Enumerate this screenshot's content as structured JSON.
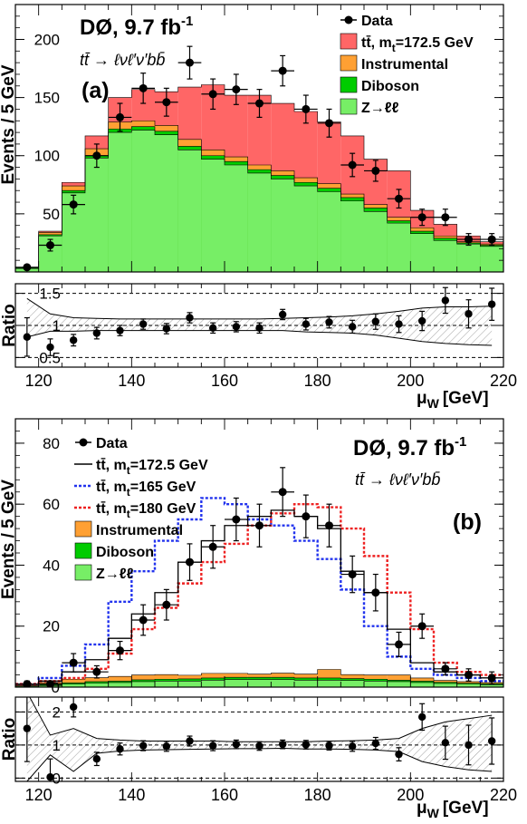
{
  "chart_data": [
    {
      "panel": "(a)",
      "type": "bar",
      "experiment": "DØ, 9.7 fb",
      "lumi_exp": "-1",
      "channel": "tt̄ → ℓνℓ′ν′bb̄",
      "xlabel": "μ",
      "xlabel_sub": "W",
      "xlabel_unit": "[GeV]",
      "ylabel": "Events / 5 GeV",
      "ratio_ylabel": "Ratio",
      "xlim": [
        115,
        220
      ],
      "ylim": [
        0,
        230
      ],
      "ratio_ylim": [
        0.35,
        1.65
      ],
      "xticks": [
        120,
        140,
        160,
        180,
        200,
        220
      ],
      "yticks": [
        50,
        100,
        150,
        200
      ],
      "ratio_yticks": [
        "0.5",
        "1",
        "1.5"
      ],
      "ratio_yvals": [
        0.5,
        1,
        1.5
      ],
      "bin_edges": [
        115,
        120,
        125,
        130,
        135,
        140,
        145,
        150,
        155,
        160,
        165,
        170,
        175,
        180,
        185,
        190,
        195,
        200,
        205,
        210,
        215,
        220
      ],
      "legend": [
        {
          "marker": "point",
          "label": "Data"
        },
        {
          "marker": "box",
          "color": "#ff6666",
          "label": "tt̄, m",
          "sub": "t",
          "suffix": "=172.5 GeV"
        },
        {
          "marker": "box",
          "color": "#ffa033",
          "label": "Instrumental"
        },
        {
          "marker": "box",
          "color": "#00cc00",
          "label": "Diboson"
        },
        {
          "marker": "box",
          "color": "#77ee66",
          "label": "Z→ℓℓ"
        }
      ],
      "colors": {
        "ttbar": "#ff6666",
        "instrumental": "#ffa033",
        "diboson": "#00cc00",
        "zll": "#77ee66"
      },
      "stack": {
        "zll": [
          3,
          31,
          68,
          98,
          120,
          122,
          118,
          105,
          97,
          92,
          85,
          80,
          74,
          69,
          61,
          52,
          42,
          33,
          27,
          24,
          22
        ],
        "diboson": [
          0.5,
          1,
          2,
          2,
          3,
          3,
          3,
          3,
          3,
          3,
          3,
          3,
          3,
          3,
          3,
          3,
          2,
          2,
          2,
          1,
          1
        ],
        "instrumental": [
          0.5,
          2,
          4,
          6,
          6,
          5,
          5,
          6,
          5,
          4,
          4,
          4,
          4,
          4,
          3,
          3,
          3,
          3,
          2,
          1,
          1
        ],
        "ttbar": [
          0,
          1,
          3,
          11,
          21,
          27,
          29,
          45,
          56,
          53,
          60,
          58,
          57,
          53,
          50,
          39,
          40,
          15,
          10,
          5,
          2
        ]
      },
      "data": {
        "x": [
          117.5,
          122.5,
          127.5,
          132.5,
          137.5,
          142.5,
          147.5,
          152.5,
          157.5,
          162.5,
          167.5,
          172.5,
          177.5,
          182.5,
          187.5,
          192.5,
          197.5,
          202.5,
          207.5,
          212.5,
          217.5
        ],
        "y": [
          4,
          23,
          58,
          100,
          133,
          158,
          146,
          180,
          153,
          157,
          145,
          173,
          140,
          128,
          92,
          87,
          63,
          47,
          47,
          28,
          28
        ],
        "err": [
          2,
          5,
          8,
          10,
          12,
          13,
          12,
          14,
          13,
          13,
          12,
          13,
          12,
          12,
          10,
          9,
          8,
          7,
          7,
          5,
          5
        ]
      },
      "ratio": {
        "x": [
          117.5,
          122.5,
          127.5,
          132.5,
          137.5,
          142.5,
          147.5,
          152.5,
          157.5,
          162.5,
          167.5,
          172.5,
          177.5,
          182.5,
          187.5,
          192.5,
          197.5,
          202.5,
          207.5,
          212.5,
          217.5
        ],
        "y": [
          0.82,
          0.66,
          0.77,
          0.88,
          0.92,
          1.02,
          0.95,
          1.12,
          0.96,
          0.98,
          0.96,
          1.17,
          1.02,
          1.05,
          0.98,
          1.06,
          1.02,
          1.07,
          1.39,
          1.18,
          1.33
        ],
        "err": [
          0.3,
          0.13,
          0.09,
          0.09,
          0.08,
          0.08,
          0.08,
          0.08,
          0.08,
          0.08,
          0.08,
          0.08,
          0.09,
          0.09,
          0.1,
          0.12,
          0.13,
          0.15,
          0.2,
          0.22,
          0.25
        ],
        "band_upper": [
          1.42,
          1.18,
          1.12,
          1.11,
          1.1,
          1.1,
          1.1,
          1.1,
          1.1,
          1.1,
          1.1,
          1.11,
          1.12,
          1.13,
          1.15,
          1.18,
          1.22,
          1.27,
          1.29,
          1.29,
          1.3
        ],
        "band_lower": [
          0.82,
          0.91,
          0.91,
          0.92,
          0.92,
          0.92,
          0.92,
          0.92,
          0.92,
          0.92,
          0.92,
          0.92,
          0.9,
          0.89,
          0.88,
          0.85,
          0.8,
          0.75,
          0.72,
          0.7,
          0.69
        ]
      }
    },
    {
      "panel": "(b)",
      "type": "bar",
      "experiment": "DØ, 9.7 fb",
      "lumi_exp": "-1",
      "channel": "tt̄ → ℓνℓ′ν′bb̄",
      "xlabel": "μ",
      "xlabel_sub": "W",
      "xlabel_unit": "[GeV]",
      "ylabel": "Events / 5 GeV",
      "ratio_ylabel": "Ratio",
      "xlim": [
        115,
        220
      ],
      "ylim": [
        0,
        88
      ],
      "ratio_ylim": [
        -0.1,
        2.45
      ],
      "xticks": [
        120,
        140,
        160,
        180,
        200,
        220
      ],
      "yticks": [
        0,
        20,
        40,
        60,
        80
      ],
      "ratio_yticks": [
        "0",
        "1",
        "2"
      ],
      "ratio_yvals": [
        0,
        1,
        2
      ],
      "bin_edges": [
        115,
        120,
        125,
        130,
        135,
        140,
        145,
        150,
        155,
        160,
        165,
        170,
        175,
        180,
        185,
        190,
        195,
        200,
        205,
        210,
        215,
        220
      ],
      "legend": [
        {
          "marker": "point",
          "label": "Data"
        },
        {
          "marker": "line",
          "color": "#000000",
          "label": "tt̄, m",
          "sub": "t",
          "suffix": "=172.5 GeV"
        },
        {
          "marker": "dashline",
          "color": "#2233ee",
          "label": "tt̄, m",
          "sub": "t",
          "suffix": "=165 GeV"
        },
        {
          "marker": "dashline",
          "color": "#ee2222",
          "label": "tt̄, m",
          "sub": "t",
          "suffix": "=180 GeV"
        },
        {
          "marker": "box",
          "color": "#ffa033",
          "label": "Instrumental"
        },
        {
          "marker": "box",
          "color": "#00cc00",
          "label": "Diboson"
        },
        {
          "marker": "box",
          "color": "#77ee66",
          "label": "Z→ℓℓ"
        }
      ],
      "colors": {
        "instrumental": "#ffa033",
        "diboson": "#00cc00",
        "zll": "#77ee66",
        "nominal": "#000000",
        "mt165": "#2233ee",
        "mt180": "#ee2222"
      },
      "stack": {
        "zll": [
          0.3,
          0.5,
          1,
          1.3,
          1.5,
          1.8,
          2,
          2,
          2.3,
          2.5,
          2.5,
          2.5,
          2.3,
          2.3,
          2.2,
          2,
          1.8,
          1.5,
          1.2,
          1,
          0.8
        ],
        "diboson": [
          0.1,
          0.3,
          0.4,
          0.5,
          0.5,
          0.6,
          0.6,
          0.7,
          0.7,
          0.7,
          0.7,
          0.7,
          0.7,
          0.7,
          0.6,
          0.6,
          0.5,
          0.5,
          0.4,
          0.3,
          0.3
        ],
        "instrumental": [
          0.2,
          0.7,
          1.2,
          1.3,
          1.5,
          1.6,
          1.5,
          1.2,
          1.5,
          1.3,
          1.1,
          1.4,
          1.3,
          2.8,
          1.3,
          1.4,
          1.7,
          1.0,
          0.6,
          0.5,
          0.4
        ]
      },
      "nominal": [
        1,
        2,
        5,
        9,
        16,
        24,
        31,
        41,
        48,
        53,
        56,
        58,
        56,
        52,
        38,
        31,
        19,
        8,
        5,
        4,
        3
      ],
      "mt165": [
        1,
        3,
        7,
        14,
        28,
        38,
        48,
        55,
        62,
        60,
        55,
        53,
        48,
        42,
        32,
        20,
        10,
        6,
        4,
        3,
        2
      ],
      "mt180": [
        1,
        2,
        3,
        6,
        11,
        19,
        26,
        34,
        41,
        47,
        53,
        57,
        60,
        59,
        52,
        43,
        31,
        19,
        8,
        5,
        4
      ],
      "data": {
        "x": [
          117.5,
          122.5,
          127.5,
          132.5,
          137.5,
          142.5,
          147.5,
          152.5,
          157.5,
          162.5,
          167.5,
          172.5,
          177.5,
          182.5,
          187.5,
          192.5,
          197.5,
          202.5,
          207.5,
          212.5,
          217.5
        ],
        "y": [
          1,
          1,
          8,
          5,
          12,
          22,
          27,
          41,
          46,
          55,
          53,
          64,
          56,
          53,
          37,
          31,
          14,
          20,
          6,
          4,
          3
        ],
        "err": [
          1,
          1,
          3,
          2,
          3,
          5,
          5,
          6,
          7,
          7,
          7,
          8,
          7,
          7,
          6,
          6,
          4,
          4,
          2,
          2,
          2
        ]
      },
      "ratio": {
        "x": [
          117.5,
          122.5,
          127.5,
          132.5,
          137.5,
          142.5,
          147.5,
          152.5,
          157.5,
          162.5,
          167.5,
          172.5,
          177.5,
          182.5,
          187.5,
          192.5,
          197.5,
          202.5,
          207.5,
          212.5,
          217.5
        ],
        "y": [
          1.5,
          0.03,
          2.15,
          0.58,
          0.88,
          0.98,
          0.96,
          1.12,
          0.98,
          1.02,
          0.97,
          1.02,
          1.01,
          0.98,
          0.96,
          1.05,
          0.72,
          1.85,
          1.07,
          1.0,
          1.12
        ],
        "err": [
          1.0,
          0.55,
          0.3,
          0.2,
          0.18,
          0.15,
          0.15,
          0.15,
          0.15,
          0.13,
          0.13,
          0.13,
          0.13,
          0.13,
          0.15,
          0.18,
          0.2,
          0.4,
          0.5,
          0.6,
          0.7
        ],
        "band_upper": [
          2.6,
          1.3,
          1.5,
          1.2,
          1.15,
          1.12,
          1.12,
          1.12,
          1.12,
          1.1,
          1.1,
          1.1,
          1.1,
          1.12,
          1.13,
          1.15,
          1.2,
          1.5,
          1.7,
          1.8,
          1.9
        ],
        "band_lower": [
          -0.1,
          0.7,
          0.2,
          0.75,
          0.82,
          0.85,
          0.86,
          0.87,
          0.88,
          0.89,
          0.89,
          0.9,
          0.88,
          0.88,
          0.87,
          0.85,
          0.8,
          0.5,
          0.35,
          0.25,
          0.2
        ]
      }
    }
  ]
}
